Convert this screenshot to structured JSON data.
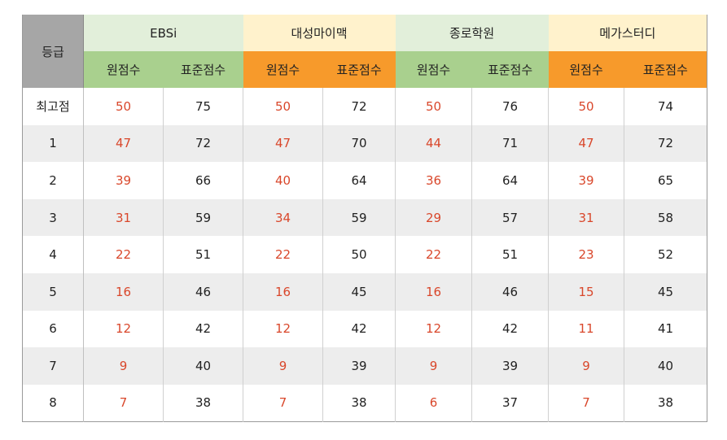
{
  "header": {
    "grade_label": "등급",
    "groups": [
      {
        "name": "EBSi"
      },
      {
        "name": "대성마이맥"
      },
      {
        "name": "종로학원"
      },
      {
        "name": "메가스터디"
      }
    ],
    "raw_label": "원점수",
    "std_label": "표준점수"
  },
  "rows": [
    {
      "grade": "최고점",
      "values": [
        "50",
        "75",
        "50",
        "72",
        "50",
        "76",
        "50",
        "74"
      ]
    },
    {
      "grade": "1",
      "values": [
        "47",
        "72",
        "47",
        "70",
        "44",
        "71",
        "47",
        "72"
      ]
    },
    {
      "grade": "2",
      "values": [
        "39",
        "66",
        "40",
        "64",
        "36",
        "64",
        "39",
        "65"
      ]
    },
    {
      "grade": "3",
      "values": [
        "31",
        "59",
        "34",
        "59",
        "29",
        "57",
        "31",
        "58"
      ]
    },
    {
      "grade": "4",
      "values": [
        "22",
        "51",
        "22",
        "50",
        "22",
        "51",
        "23",
        "52"
      ]
    },
    {
      "grade": "5",
      "values": [
        "16",
        "46",
        "16",
        "45",
        "16",
        "46",
        "15",
        "45"
      ]
    },
    {
      "grade": "6",
      "values": [
        "12",
        "42",
        "12",
        "42",
        "12",
        "42",
        "11",
        "41"
      ]
    },
    {
      "grade": "7",
      "values": [
        "9",
        "40",
        "9",
        "39",
        "9",
        "39",
        "9",
        "40"
      ]
    },
    {
      "grade": "8",
      "values": [
        "7",
        "38",
        "7",
        "38",
        "6",
        "37",
        "7",
        "38"
      ]
    }
  ],
  "colors": {
    "grade_header": "#a6a6a6",
    "green_group": "#e2efda",
    "yellow_group": "#fff2cc",
    "green_sub": "#a9d08e",
    "orange_sub": "#f79a2b",
    "raw_score_text": "#d9472b",
    "alt_row": "#ededed"
  }
}
